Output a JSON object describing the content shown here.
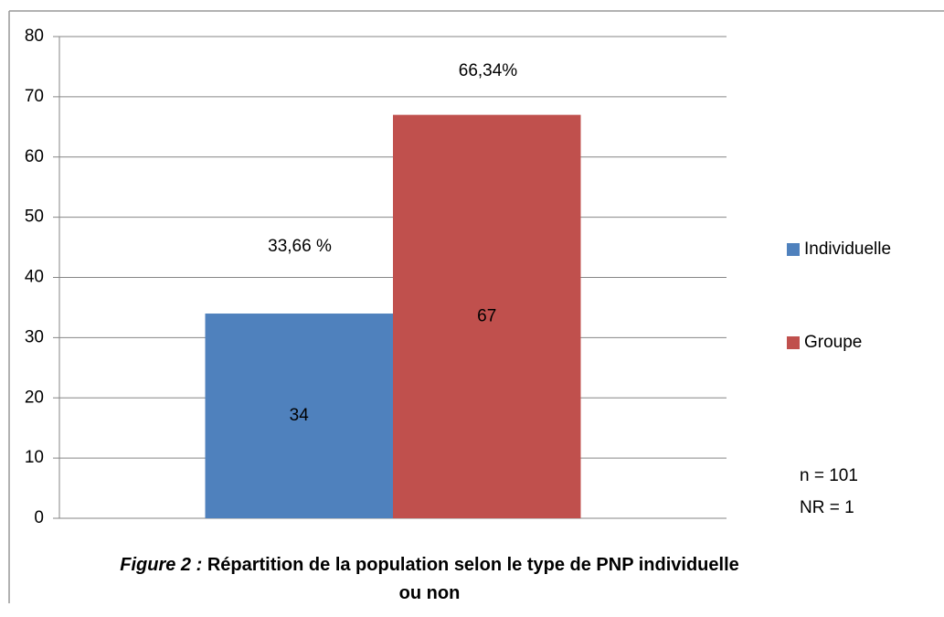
{
  "chart_data": {
    "type": "bar",
    "categories": [
      null
    ],
    "series": [
      {
        "name": "Individuelle",
        "color": "#4f81bd",
        "values": [
          34
        ]
      },
      {
        "name": "Groupe",
        "color": "#c0504d",
        "values": [
          67
        ]
      }
    ],
    "ylim": [
      0,
      80
    ],
    "yticks": [
      0,
      10,
      20,
      30,
      40,
      50,
      60,
      70,
      80
    ],
    "grid": true,
    "legend": "right",
    "annotations": [
      "33,66 %",
      "66,34%",
      "n = 101",
      "NR = 1"
    ],
    "caption_label": "Figure 2 :",
    "caption": "Répartition de la population selon le type de PNP individuelle ou non"
  }
}
